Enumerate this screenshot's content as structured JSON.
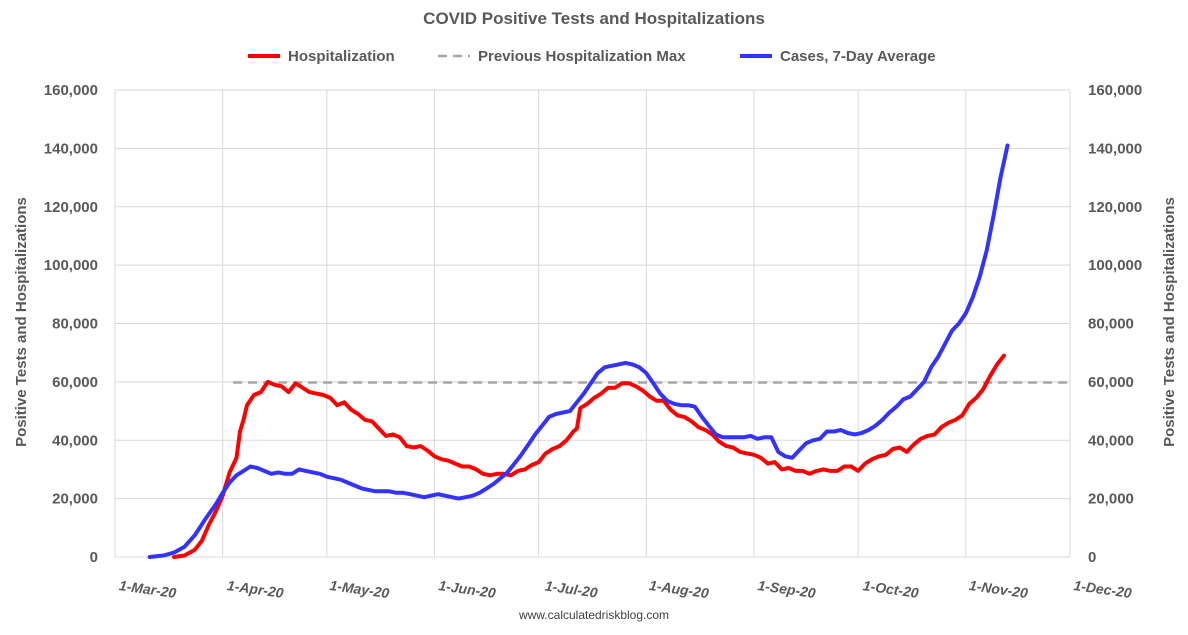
{
  "chart_data": {
    "type": "line",
    "title": "COVID Positive Tests and Hospitalizations",
    "ylabel_left": "Positive Tests and Hospitalizations",
    "ylabel_right": "Positive Tests and Hospitalizations",
    "source": "www.calculatedriskblog.com",
    "ylim": [
      0,
      160000
    ],
    "yticks": [
      0,
      20000,
      40000,
      60000,
      80000,
      100000,
      120000,
      140000,
      160000
    ],
    "ytick_labels": [
      "0",
      "20,000",
      "40,000",
      "60,000",
      "80,000",
      "100,000",
      "120,000",
      "140,000",
      "160,000"
    ],
    "x_range_days": [
      0,
      275
    ],
    "xticks": [
      {
        "day": 0,
        "label": "1-Mar-20"
      },
      {
        "day": 31,
        "label": "1-Apr-20"
      },
      {
        "day": 61,
        "label": "1-May-20"
      },
      {
        "day": 92,
        "label": "1-Jun-20"
      },
      {
        "day": 122,
        "label": "1-Jul-20"
      },
      {
        "day": 153,
        "label": "1-Aug-20"
      },
      {
        "day": 184,
        "label": "1-Sep-20"
      },
      {
        "day": 214,
        "label": "1-Oct-20"
      },
      {
        "day": 245,
        "label": "1-Nov-20"
      },
      {
        "day": 275,
        "label": "1-Dec-20"
      }
    ],
    "legend_position": "top-center",
    "series": [
      {
        "name": "Hospitalization",
        "color": "#ff0000",
        "style": "solid",
        "points": [
          [
            17,
            0
          ],
          [
            20,
            500
          ],
          [
            23,
            2500
          ],
          [
            25,
            5500
          ],
          [
            27,
            11000
          ],
          [
            29,
            15500
          ],
          [
            31,
            21000
          ],
          [
            33,
            29000
          ],
          [
            35,
            34000
          ],
          [
            36,
            43000
          ],
          [
            37,
            47000
          ],
          [
            38,
            52000
          ],
          [
            40,
            55500
          ],
          [
            42,
            56500
          ],
          [
            44,
            60000
          ],
          [
            46,
            59000
          ],
          [
            48,
            58500
          ],
          [
            50,
            56500
          ],
          [
            52,
            59500
          ],
          [
            54,
            58000
          ],
          [
            56,
            56500
          ],
          [
            58,
            56000
          ],
          [
            60,
            55500
          ],
          [
            62,
            54500
          ],
          [
            64,
            52000
          ],
          [
            66,
            53000
          ],
          [
            68,
            50500
          ],
          [
            70,
            49000
          ],
          [
            72,
            47000
          ],
          [
            74,
            46500
          ],
          [
            76,
            44000
          ],
          [
            78,
            41500
          ],
          [
            80,
            42000
          ],
          [
            82,
            41000
          ],
          [
            84,
            38000
          ],
          [
            86,
            37500
          ],
          [
            88,
            38000
          ],
          [
            90,
            36500
          ],
          [
            92,
            34500
          ],
          [
            94,
            33500
          ],
          [
            96,
            33000
          ],
          [
            98,
            32000
          ],
          [
            100,
            31000
          ],
          [
            102,
            31000
          ],
          [
            104,
            30000
          ],
          [
            106,
            28500
          ],
          [
            108,
            28000
          ],
          [
            110,
            28500
          ],
          [
            112,
            28500
          ],
          [
            114,
            28000
          ],
          [
            116,
            29500
          ],
          [
            118,
            30000
          ],
          [
            120,
            31500
          ],
          [
            122,
            32500
          ],
          [
            124,
            35500
          ],
          [
            126,
            37000
          ],
          [
            128,
            38000
          ],
          [
            130,
            40000
          ],
          [
            132,
            43000
          ],
          [
            133,
            44000
          ],
          [
            134,
            51000
          ],
          [
            136,
            52500
          ],
          [
            138,
            54500
          ],
          [
            140,
            56000
          ],
          [
            142,
            58000
          ],
          [
            144,
            58000
          ],
          [
            146,
            59500
          ],
          [
            148,
            59500
          ],
          [
            150,
            58500
          ],
          [
            152,
            57000
          ],
          [
            154,
            55000
          ],
          [
            156,
            53500
          ],
          [
            158,
            53500
          ],
          [
            160,
            50500
          ],
          [
            162,
            48500
          ],
          [
            164,
            48000
          ],
          [
            166,
            46500
          ],
          [
            168,
            44500
          ],
          [
            170,
            43500
          ],
          [
            172,
            42000
          ],
          [
            174,
            39500
          ],
          [
            176,
            38000
          ],
          [
            178,
            37500
          ],
          [
            180,
            36000
          ],
          [
            182,
            35500
          ],
          [
            184,
            35000
          ],
          [
            186,
            34000
          ],
          [
            188,
            32000
          ],
          [
            190,
            32500
          ],
          [
            192,
            30000
          ],
          [
            194,
            30500
          ],
          [
            196,
            29500
          ],
          [
            198,
            29500
          ],
          [
            200,
            28500
          ],
          [
            202,
            29500
          ],
          [
            204,
            30000
          ],
          [
            206,
            29500
          ],
          [
            208,
            29500
          ],
          [
            210,
            31000
          ],
          [
            212,
            31000
          ],
          [
            214,
            29500
          ],
          [
            216,
            32000
          ],
          [
            218,
            33500
          ],
          [
            220,
            34500
          ],
          [
            222,
            35000
          ],
          [
            224,
            37000
          ],
          [
            226,
            37500
          ],
          [
            228,
            36000
          ],
          [
            230,
            38500
          ],
          [
            232,
            40500
          ],
          [
            234,
            41500
          ],
          [
            236,
            42000
          ],
          [
            238,
            44500
          ],
          [
            240,
            46000
          ],
          [
            242,
            47000
          ],
          [
            244,
            48500
          ],
          [
            246,
            52500
          ],
          [
            248,
            54500
          ],
          [
            250,
            57500
          ],
          [
            252,
            62000
          ],
          [
            254,
            66000
          ],
          [
            256,
            69000
          ]
        ]
      },
      {
        "name": "Previous Hospitalization Max",
        "color": "#a6a6a6",
        "style": "dashed",
        "points": [
          [
            34,
            59800
          ],
          [
            275,
            59800
          ]
        ]
      },
      {
        "name": "Cases, 7-Day Average",
        "color": "#3333ff",
        "style": "solid",
        "points": [
          [
            10,
            0
          ],
          [
            14,
            500
          ],
          [
            17,
            1500
          ],
          [
            20,
            3500
          ],
          [
            23,
            7500
          ],
          [
            26,
            13000
          ],
          [
            29,
            18000
          ],
          [
            31,
            22000
          ],
          [
            33,
            25500
          ],
          [
            35,
            28000
          ],
          [
            37,
            29500
          ],
          [
            39,
            31000
          ],
          [
            41,
            30500
          ],
          [
            43,
            29500
          ],
          [
            45,
            28500
          ],
          [
            47,
            29000
          ],
          [
            49,
            28500
          ],
          [
            51,
            28500
          ],
          [
            53,
            30000
          ],
          [
            55,
            29500
          ],
          [
            57,
            29000
          ],
          [
            59,
            28500
          ],
          [
            61,
            27500
          ],
          [
            63,
            27000
          ],
          [
            65,
            26500
          ],
          [
            67,
            25500
          ],
          [
            69,
            24500
          ],
          [
            71,
            23500
          ],
          [
            73,
            23000
          ],
          [
            75,
            22500
          ],
          [
            77,
            22500
          ],
          [
            79,
            22500
          ],
          [
            81,
            22000
          ],
          [
            83,
            22000
          ],
          [
            85,
            21500
          ],
          [
            87,
            21000
          ],
          [
            89,
            20500
          ],
          [
            91,
            21000
          ],
          [
            93,
            21500
          ],
          [
            95,
            21000
          ],
          [
            97,
            20500
          ],
          [
            99,
            20000
          ],
          [
            101,
            20500
          ],
          [
            103,
            21000
          ],
          [
            105,
            22000
          ],
          [
            107,
            23500
          ],
          [
            109,
            25000
          ],
          [
            111,
            27000
          ],
          [
            113,
            29000
          ],
          [
            115,
            32000
          ],
          [
            117,
            35000
          ],
          [
            119,
            38500
          ],
          [
            121,
            42000
          ],
          [
            123,
            45000
          ],
          [
            125,
            48000
          ],
          [
            127,
            49000
          ],
          [
            129,
            49500
          ],
          [
            131,
            50000
          ],
          [
            133,
            53000
          ],
          [
            135,
            56000
          ],
          [
            137,
            59500
          ],
          [
            139,
            63000
          ],
          [
            141,
            65000
          ],
          [
            143,
            65500
          ],
          [
            145,
            66000
          ],
          [
            147,
            66500
          ],
          [
            149,
            66000
          ],
          [
            151,
            65000
          ],
          [
            153,
            63000
          ],
          [
            155,
            59500
          ],
          [
            157,
            56000
          ],
          [
            159,
            53500
          ],
          [
            161,
            52500
          ],
          [
            163,
            52000
          ],
          [
            165,
            52000
          ],
          [
            167,
            51500
          ],
          [
            169,
            48000
          ],
          [
            171,
            45000
          ],
          [
            173,
            42000
          ],
          [
            175,
            41000
          ],
          [
            177,
            41000
          ],
          [
            179,
            41000
          ],
          [
            181,
            41000
          ],
          [
            183,
            41500
          ],
          [
            185,
            40500
          ],
          [
            187,
            41000
          ],
          [
            189,
            41000
          ],
          [
            191,
            36000
          ],
          [
            193,
            34500
          ],
          [
            195,
            34000
          ],
          [
            197,
            36500
          ],
          [
            199,
            39000
          ],
          [
            201,
            40000
          ],
          [
            203,
            40500
          ],
          [
            205,
            43000
          ],
          [
            207,
            43000
          ],
          [
            209,
            43500
          ],
          [
            211,
            42500
          ],
          [
            213,
            42000
          ],
          [
            215,
            42500
          ],
          [
            217,
            43500
          ],
          [
            219,
            45000
          ],
          [
            221,
            47000
          ],
          [
            223,
            49500
          ],
          [
            225,
            51500
          ],
          [
            227,
            54000
          ],
          [
            229,
            55000
          ],
          [
            231,
            57500
          ],
          [
            233,
            60000
          ],
          [
            235,
            65000
          ],
          [
            237,
            68500
          ],
          [
            239,
            73000
          ],
          [
            241,
            77500
          ],
          [
            243,
            80000
          ],
          [
            245,
            83500
          ],
          [
            247,
            89000
          ],
          [
            249,
            96000
          ],
          [
            251,
            105000
          ],
          [
            253,
            117000
          ],
          [
            255,
            130000
          ],
          [
            257,
            141000
          ]
        ]
      }
    ]
  }
}
